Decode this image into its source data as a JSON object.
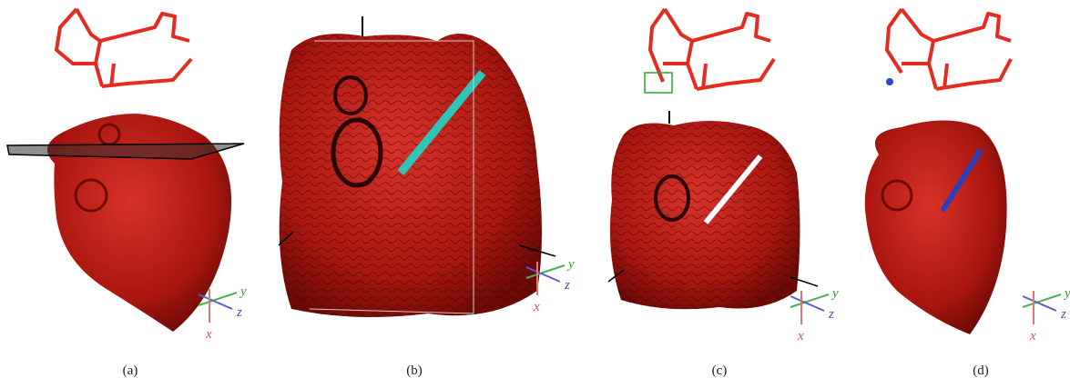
{
  "panels": [
    {
      "caption": "(a)",
      "axes": {
        "x": "x",
        "y": "y",
        "z": "z"
      }
    },
    {
      "caption": "(b)",
      "axes": {
        "x": "x",
        "y": "y",
        "z": "z"
      }
    },
    {
      "caption": "(c)",
      "axes": {
        "x": "x",
        "y": "y",
        "z": "z"
      }
    },
    {
      "caption": "(d)",
      "axes": {
        "x": "x",
        "y": "y",
        "z": "z"
      }
    }
  ]
}
